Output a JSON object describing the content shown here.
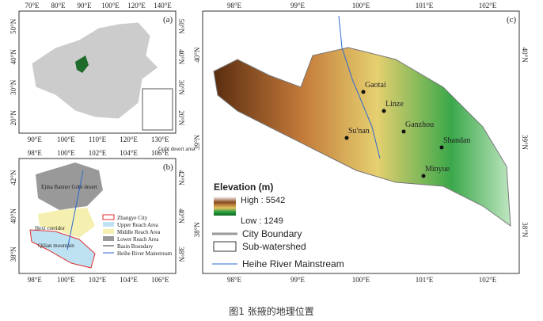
{
  "caption": "图1 张掖的地理位置",
  "panel_a": {
    "label": "(a)",
    "top_ticks": [
      "70°E",
      "80°E",
      "90°E",
      "100°E",
      "120°E",
      "140°E"
    ],
    "bottom_ticks": [
      "90°E",
      "100°E",
      "110°E",
      "120°E",
      "130°E"
    ],
    "left_ticks": [
      "50°N",
      "40°N",
      "30°N",
      "20°N"
    ],
    "right_ticks": [
      "50°N",
      "40°N",
      "30°N",
      "20°N"
    ]
  },
  "panel_b": {
    "label": "(b)",
    "corner_note": "Gobi desert area",
    "top_ticks": [
      "98°E",
      "100°E",
      "102°E",
      "104°E",
      "106°E"
    ],
    "bottom_ticks": [
      "98°E",
      "100°E",
      "102°E",
      "104°E",
      "106°E"
    ],
    "left_ticks": [
      "42°N",
      "40°N",
      "38°N"
    ],
    "right_ticks": [
      "42°N",
      "40°N",
      "38°N"
    ],
    "areas": [
      "Ejina Banner Gobi desert",
      "Hexi corridor",
      "Qilian mountain"
    ],
    "legend": [
      "Zhangye City",
      "Upper Reach Area",
      "Middle Reach Area",
      "Lower Reach Area",
      "Basin Boundary",
      "Heihe River Mainstream"
    ]
  },
  "panel_c": {
    "label": "(c)",
    "top_ticks": [
      "98°E",
      "99°E",
      "100°E",
      "101°E",
      "102°E"
    ],
    "bottom_ticks": [
      "98°E",
      "99°E",
      "100°E",
      "101°E",
      "102°E"
    ],
    "left_ticks": [
      "40°N",
      "39°N",
      "38°N"
    ],
    "right_ticks": [
      "40°N",
      "39°N",
      "38°N"
    ],
    "cities": [
      "Gaotai",
      "Linze",
      "Ganzhou",
      "Shandan",
      "Su'nan",
      "Minyue"
    ],
    "legend_title": "Elevation (m)",
    "high": "High : 5542",
    "low": "Low : 1249",
    "legend": [
      "City Boundary",
      "Sub-watershed",
      "Heihe River Mainstream"
    ]
  }
}
